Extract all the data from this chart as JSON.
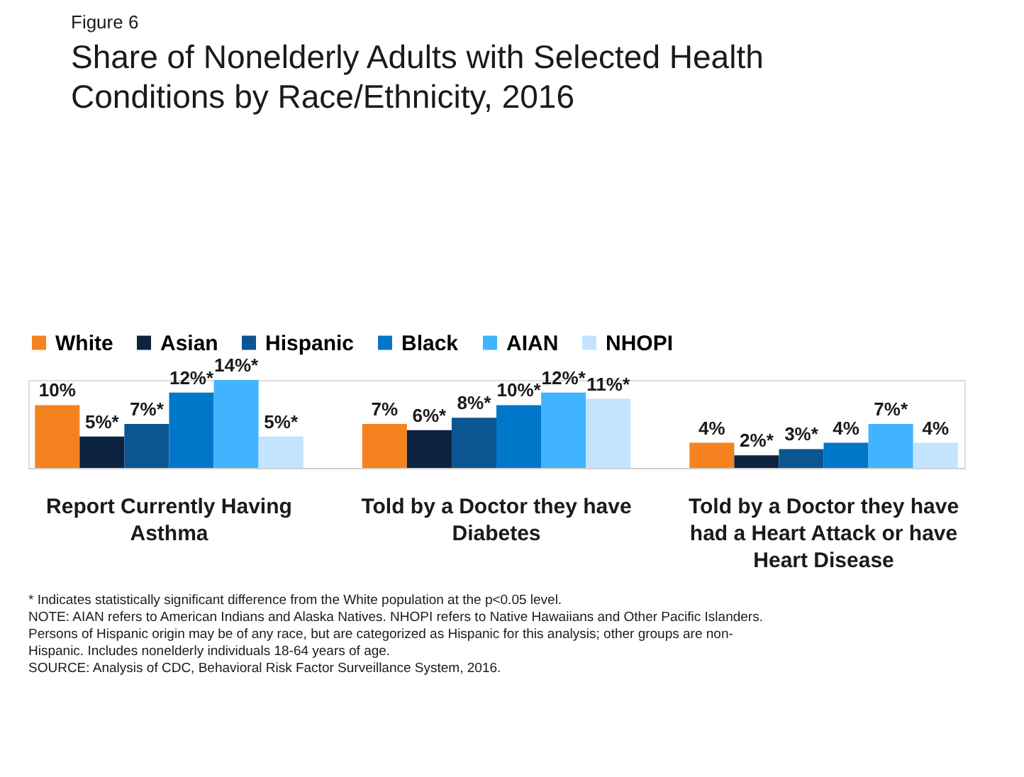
{
  "chart_data": {
    "type": "bar",
    "title": "Share of Nonelderly Adults with Selected Health Conditions by Race/Ethnicity, 2016",
    "subtitle": "Figure 6",
    "categories": [
      "Report Currently Having Asthma",
      "Told by a Doctor they have Diabetes",
      "Told by a Doctor they have had a Heart Attack or have Heart Disease"
    ],
    "series": [
      {
        "name": "White",
        "color": "#f5821f",
        "values": [
          10,
          7,
          4
        ],
        "value_labels": [
          "10%",
          "7%",
          "4%"
        ]
      },
      {
        "name": "Asian",
        "color": "#0c2340",
        "values": [
          5,
          6,
          2
        ],
        "value_labels": [
          "5%*",
          "6%*",
          "2%*"
        ]
      },
      {
        "name": "Hispanic",
        "color": "#0b5591",
        "values": [
          7,
          8,
          3
        ],
        "value_labels": [
          "7%*",
          "8%*",
          "3%*"
        ]
      },
      {
        "name": "Black",
        "color": "#0077c8",
        "values": [
          12,
          10,
          4
        ],
        "value_labels": [
          "12%*",
          "10%*",
          "4%"
        ]
      },
      {
        "name": "AIAN",
        "color": "#40b4ff",
        "values": [
          14,
          12,
          7
        ],
        "value_labels": [
          "14%*",
          "12%*",
          "7%*"
        ]
      },
      {
        "name": "NHOPI",
        "color": "#c3e4ff",
        "values": [
          5,
          11,
          4
        ],
        "value_labels": [
          "5%*",
          "11%*",
          "4%"
        ]
      }
    ],
    "legend": "top",
    "grid": false,
    "annotations": [
      "* Indicates statistically significant difference from the White population at the p<0.05 level.",
      "NOTE: AIAN refers to American Indians and Alaska Natives. NHOPI refers to Native Hawaiians and Other Pacific Islanders. Persons of Hispanic origin may be of any race, but are categorized as Hispanic for this analysis; other groups are non-Hispanic. Includes nonelderly individuals 18-64 years of age.",
      "SOURCE: Analysis of CDC, Behavioral Risk Factor Surveillance System, 2016."
    ]
  }
}
